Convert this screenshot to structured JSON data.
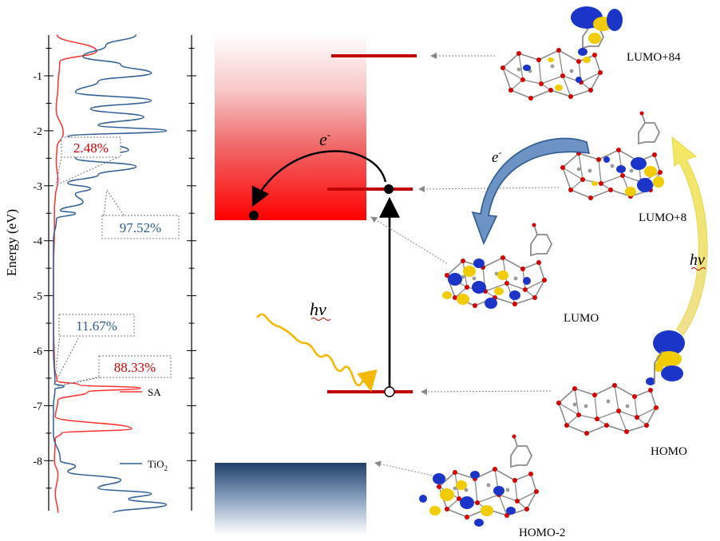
{
  "dos_panel": {
    "ylabel": "Energy (eV)",
    "yticks": [
      "-1",
      "-2",
      "-3",
      "-4",
      "-5",
      "-6",
      "-7",
      "-8"
    ],
    "ylim": [
      -8.95,
      -0.25
    ],
    "annotations": {
      "sa_conduction": "2.48%",
      "tio2_conduction": "97.52%",
      "tio2_valence": "11.67%",
      "sa_valence": "88.33%"
    },
    "legend": {
      "sa": "SA",
      "tio2_main": "TiO",
      "tio2_sub": "2"
    }
  },
  "chart_data": {
    "type": "line",
    "ylabel": "Energy (eV)",
    "ylim": [
      -8.95,
      -0.25
    ],
    "series": [
      {
        "name": "SA",
        "energy": [
          -0.25,
          -0.55,
          -0.75,
          -1.2,
          -1.6,
          -2.05,
          -2.3,
          -2.55,
          -2.9,
          -3.2,
          -3.4,
          -3.8,
          -4.5,
          -5.5,
          -6.3,
          -6.55,
          -6.62,
          -6.68,
          -6.75,
          -6.9,
          -7.2,
          -7.42,
          -7.5,
          -7.6,
          -8.0,
          -8.25,
          -8.6,
          -8.95
        ],
        "dos": [
          0.5,
          5,
          0.8,
          0.6,
          0.4,
          1.2,
          0.5,
          0.4,
          0.6,
          0.3,
          0.2,
          0.2,
          0.1,
          0.1,
          0.2,
          0.5,
          3,
          10,
          4,
          0.6,
          0.3,
          9,
          1,
          0.3,
          0.2,
          0.6,
          0.3,
          0.6
        ]
      },
      {
        "name": "TiO2",
        "energy": [
          -0.25,
          -0.45,
          -0.65,
          -0.8,
          -0.95,
          -1.1,
          -1.3,
          -1.45,
          -1.6,
          -1.75,
          -1.9,
          -2.0,
          -2.1,
          -2.2,
          -2.35,
          -2.5,
          -2.65,
          -2.8,
          -2.95,
          -3.05,
          -3.15,
          -3.3,
          -3.45,
          -3.5,
          -3.6,
          -4.0,
          -5.0,
          -6.0,
          -6.6,
          -6.65,
          -6.7,
          -7.0,
          -7.5,
          -8.0,
          -8.1,
          -8.2,
          -8.35,
          -8.5,
          -8.6,
          -8.7,
          -8.8,
          -8.95
        ],
        "dos": [
          11,
          7,
          4,
          9,
          13,
          6,
          3,
          13,
          5,
          12,
          6,
          15,
          2,
          7,
          10,
          3,
          11,
          6,
          2,
          5,
          3,
          4,
          1,
          3,
          0.5,
          0.1,
          0.1,
          0.1,
          0.3,
          1.5,
          0.3,
          0.1,
          0.1,
          1,
          3,
          2,
          9,
          6,
          13,
          10,
          15,
          8
        ]
      }
    ]
  },
  "band_diagram": {
    "electron_label": "e",
    "electron_sup": "-",
    "photon_label": "hν"
  },
  "orbitals": {
    "lumo84": "LUMO+84",
    "lumo8": "LUMO+8",
    "lumo": "LUMO",
    "homo": "HOMO",
    "homo2": "HOMO-2",
    "electron_label": "e",
    "electron_sup": "-",
    "photon_label": "hν"
  }
}
